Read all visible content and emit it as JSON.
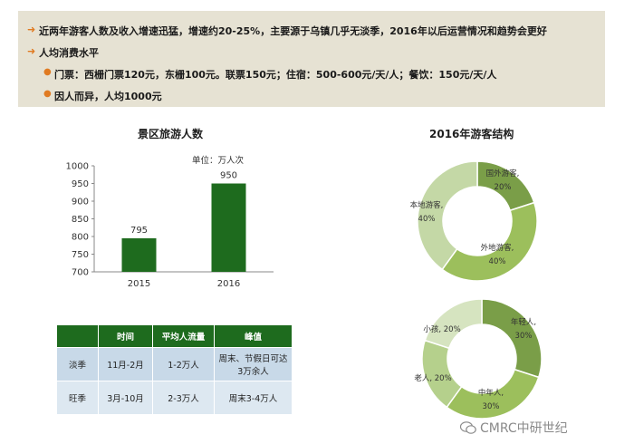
{
  "summary": {
    "bullet1": "近两年游客人数及收入增速迅猛，增速约20-25%，主要源于乌镇几乎无淡季，2016年以后运营情况和趋势会更好",
    "bullet2": "人均消费水平",
    "sub1": "门票：西栅门票120元，东栅100元。联票150元；住宿：500-600元/天/人；餐饮：150元/天/人",
    "sub2": "因人而异，人均1000元"
  },
  "bar_section": {
    "title": "景区旅游人数",
    "unit": "单位：万人次"
  },
  "donut_section": {
    "title": "2016年游客结构"
  },
  "table": {
    "headers": [
      "",
      "时间",
      "平均人流量",
      "峰值"
    ],
    "rows": [
      [
        "淡季",
        "11月-2月",
        "1-2万人",
        "周末、节假日可达3万余人"
      ],
      [
        "旺季",
        "3月-10月",
        "2-3万人",
        "周末3-4万人"
      ]
    ]
  },
  "watermark": "CMRC中研世纪",
  "colors": {
    "bar": "#1e6b1e",
    "table_header": "#1e6b1e",
    "bullet_marker": "#e07b22",
    "donut1": [
      "#7a9e48",
      "#9cbf5c",
      "#c4d8a6"
    ],
    "donut2": [
      "#7a9e48",
      "#9cbf5c",
      "#b5d08c",
      "#d6e4c0"
    ]
  },
  "chart_data": [
    {
      "type": "bar",
      "title": "景区旅游人数",
      "unit": "单位：万人次",
      "categories": [
        "2015",
        "2016"
      ],
      "values": [
        795,
        950
      ],
      "ylim": [
        700,
        1000
      ],
      "yticks": [
        700,
        750,
        800,
        850,
        900,
        950,
        1000
      ],
      "grid": false
    },
    {
      "type": "pie",
      "title": "2016年游客结构",
      "labels": [
        "国外游客",
        "外地游客",
        "本地游客"
      ],
      "values": [
        20,
        40,
        40
      ],
      "value_labels": [
        "20%",
        "40%",
        "40%"
      ]
    },
    {
      "type": "pie",
      "labels": [
        "年轻人",
        "中年人",
        "老人",
        "小孩"
      ],
      "values": [
        30,
        30,
        20,
        20
      ],
      "value_labels": [
        "30%",
        "30%",
        "20%",
        "20%"
      ]
    }
  ]
}
